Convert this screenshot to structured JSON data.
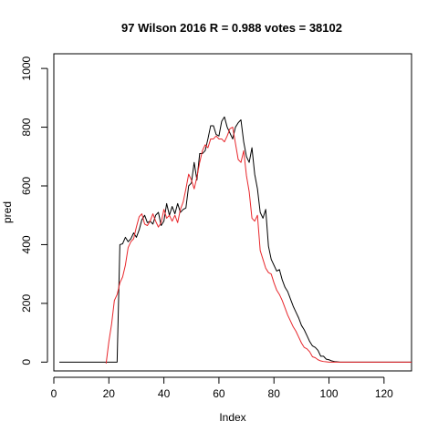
{
  "chart_data": {
    "type": "line",
    "title": "97 Wilson 2016 R = 0.988 votes = 38102",
    "xlabel": "Index",
    "ylabel": "pred",
    "xlim": [
      0,
      130
    ],
    "ylim": [
      -30,
      1050
    ],
    "x_ticks": [
      0,
      20,
      40,
      60,
      80,
      100,
      120
    ],
    "y_ticks": [
      0,
      200,
      400,
      600,
      800,
      1000
    ],
    "grid": false,
    "legend": "none",
    "series": [
      {
        "color": "#000000",
        "x": [
          2,
          3,
          4,
          5,
          6,
          7,
          8,
          9,
          10,
          11,
          12,
          13,
          14,
          15,
          16,
          17,
          18,
          19,
          20,
          21,
          22,
          23,
          24,
          25,
          26,
          27,
          28,
          29,
          30,
          31,
          32,
          33,
          34,
          35,
          36,
          37,
          38,
          39,
          40,
          41,
          42,
          43,
          44,
          45,
          46,
          47,
          48,
          49,
          50,
          51,
          52,
          53,
          54,
          55,
          56,
          57,
          58,
          59,
          60,
          61,
          62,
          63,
          64,
          65,
          66,
          67,
          68,
          69,
          70,
          71,
          72,
          73,
          74,
          75,
          76,
          77,
          78,
          79,
          80,
          81,
          82,
          83,
          84,
          85,
          86,
          87,
          88,
          89,
          90,
          91,
          92,
          93,
          94,
          95,
          96,
          97,
          98,
          99,
          100,
          101,
          102,
          103,
          104,
          105,
          106,
          107,
          108,
          109,
          110,
          111,
          112,
          113,
          114,
          115,
          116,
          117,
          118,
          119,
          120,
          121,
          122,
          123,
          124,
          125,
          126,
          127,
          128,
          129,
          130
        ],
        "y": [
          0,
          0,
          0,
          0,
          0,
          0,
          0,
          0,
          0,
          0,
          0,
          0,
          0,
          0,
          0,
          0,
          0,
          0,
          0,
          0,
          0,
          0,
          400,
          403,
          425,
          410,
          420,
          440,
          425,
          450,
          485,
          500,
          475,
          480,
          470,
          500,
          510,
          465,
          480,
          540,
          500,
          530,
          505,
          540,
          510,
          520,
          525,
          600,
          610,
          680,
          620,
          710,
          710,
          720,
          760,
          805,
          805,
          775,
          770,
          820,
          835,
          800,
          780,
          760,
          800,
          815,
          825,
          750,
          700,
          680,
          730,
          640,
          590,
          510,
          490,
          520,
          395,
          350,
          330,
          310,
          315,
          280,
          255,
          240,
          215,
          190,
          170,
          150,
          125,
          110,
          90,
          70,
          55,
          50,
          40,
          20,
          20,
          10,
          8,
          4,
          2,
          1,
          0,
          0,
          0,
          0,
          0,
          0,
          0,
          0,
          0,
          0,
          0,
          0,
          0,
          0,
          0,
          0,
          0,
          0,
          0,
          0,
          0,
          0,
          0,
          0,
          0,
          0,
          0
        ]
      },
      {
        "color": "#e8262b",
        "x": [
          19,
          20,
          21,
          22,
          23,
          24,
          25,
          26,
          27,
          28,
          29,
          30,
          31,
          32,
          33,
          34,
          35,
          36,
          37,
          38,
          39,
          40,
          41,
          42,
          43,
          44,
          45,
          46,
          47,
          48,
          49,
          50,
          51,
          52,
          53,
          54,
          55,
          56,
          57,
          58,
          59,
          60,
          61,
          62,
          63,
          64,
          65,
          66,
          67,
          68,
          69,
          70,
          71,
          72,
          73,
          74,
          75,
          76,
          77,
          78,
          79,
          80,
          81,
          82,
          83,
          84,
          85,
          86,
          87,
          88,
          89,
          90,
          91,
          92,
          93,
          94,
          95,
          96,
          97,
          98,
          99,
          100,
          101,
          102,
          103,
          104,
          105,
          106,
          107,
          108,
          109,
          110,
          111,
          112,
          113,
          114,
          115,
          116,
          117,
          118,
          119,
          120,
          121,
          122,
          123,
          124,
          125,
          126,
          127,
          128,
          129,
          130
        ],
        "y": [
          -5,
          70,
          130,
          210,
          230,
          270,
          290,
          330,
          390,
          410,
          420,
          460,
          495,
          505,
          470,
          465,
          480,
          505,
          480,
          460,
          475,
          520,
          490,
          500,
          480,
          500,
          475,
          520,
          545,
          590,
          640,
          620,
          590,
          630,
          680,
          720,
          740,
          730,
          760,
          760,
          770,
          760,
          760,
          750,
          770,
          795,
          800,
          745,
          690,
          680,
          720,
          635,
          580,
          490,
          480,
          500,
          380,
          350,
          320,
          305,
          300,
          270,
          245,
          230,
          210,
          185,
          160,
          140,
          120,
          105,
          85,
          65,
          50,
          45,
          35,
          18,
          15,
          8,
          4,
          2,
          1,
          0,
          0,
          0,
          0,
          0,
          0,
          0,
          0,
          0,
          0,
          0,
          0,
          0,
          0,
          0,
          0,
          0,
          0,
          0,
          0,
          0,
          0,
          0,
          0,
          0,
          0,
          0,
          0,
          0,
          0,
          0
        ]
      }
    ]
  }
}
